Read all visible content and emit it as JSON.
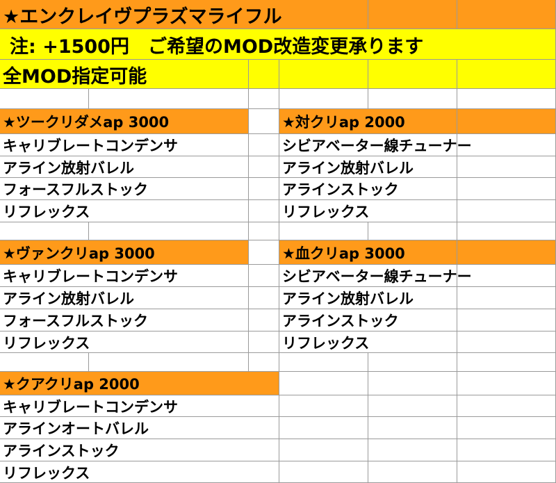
{
  "title": "★エンクレイヴプラズマライフル",
  "notice": "注: +1500円　ご希望のMOD改造変更承ります",
  "subnotice": "全MOD指定可能",
  "sections": [
    {
      "heading": "★ツークリダメap 3000",
      "items": [
        "キャリブレートコンデンサ",
        "アライン放射バレル",
        "フォースフルストック",
        "リフレックス"
      ]
    },
    {
      "heading": "★対クリap  2000",
      "items": [
        "シビアベーター線チューナー",
        "アライン放射バレル",
        "アラインストック",
        "リフレックス"
      ]
    },
    {
      "heading": "★ヴァンクリap 3000",
      "items": [
        "キャリブレートコンデンサ",
        "アライン放射バレル",
        "フォースフルストック",
        "リフレックス"
      ]
    },
    {
      "heading": "★血クリap 3000",
      "items": [
        "シビアベーター線チューナー",
        "アライン放射バレル",
        "アラインストック",
        "リフレックス"
      ]
    },
    {
      "heading": "★クアクリap 2000",
      "items": [
        "キャリブレートコンデンサ",
        "アラインオートバレル",
        "アラインストック",
        "リフレックス"
      ]
    }
  ]
}
